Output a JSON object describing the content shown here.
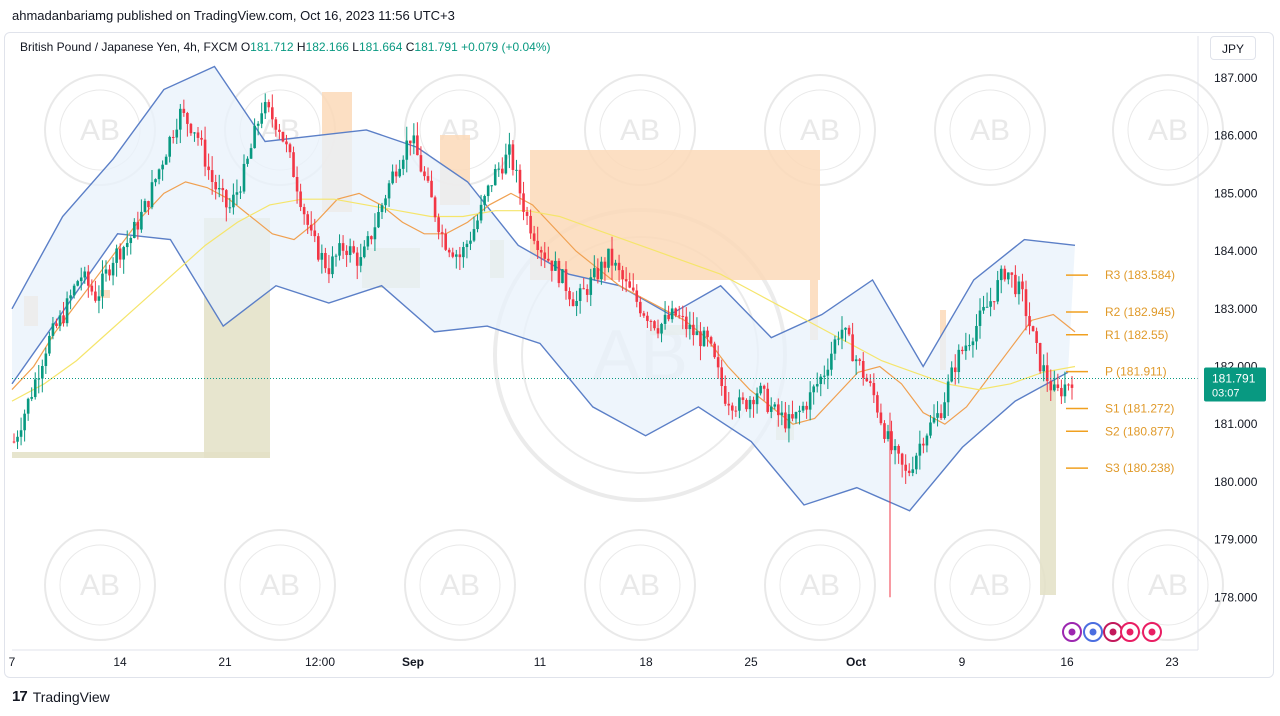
{
  "publisher": "ahmadanbariamg published on TradingView.com, Oct 16, 2023 11:56 UTC+3",
  "legend": {
    "symbol": "British Pound / Japanese Yen, 4h, FXCM",
    "o_label": "O",
    "o": "181.712",
    "h_label": "H",
    "h": "182.166",
    "l_label": "L",
    "l": "181.664",
    "c_label": "C",
    "c": "181.791",
    "change": "+0.079 (+0.04%)"
  },
  "currency": "JPY",
  "footer": {
    "brand": "TradingView",
    "logo_icon": "tradingview-logo-icon"
  },
  "watermark_text": "AB",
  "colors": {
    "up": "#089981",
    "down": "#f23645",
    "band": "#5b7fc7",
    "ma_orange": "#f0a050",
    "ma_yellow": "#f5e56b",
    "pivot": "#f0a020",
    "price_tag": "#089981"
  },
  "chart_data": {
    "type": "candlestick",
    "title": "",
    "ylim": [
      177.4,
      187.4
    ],
    "y_ticks": [
      "187.000",
      "186.000",
      "185.000",
      "184.000",
      "183.000",
      "182.000",
      "181.000",
      "180.000",
      "179.000",
      "178.000"
    ],
    "x_ticks": [
      "7",
      "14",
      "21",
      "12:00",
      "Sep",
      "11",
      "18",
      "25",
      "Oct",
      "9",
      "16",
      "23"
    ],
    "last_price": "181.791",
    "countdown": "03:07",
    "pivots": [
      {
        "label": "R3 (183.584)",
        "value": 183.584
      },
      {
        "label": "R2 (182.945)",
        "value": 182.945
      },
      {
        "label": "R1 (182.55)",
        "value": 182.55
      },
      {
        "label": "P (181.911)",
        "value": 181.911
      },
      {
        "label": "S1 (181.272)",
        "value": 181.272
      },
      {
        "label": "S2 (180.877)",
        "value": 180.877
      },
      {
        "label": "S3 (180.238)",
        "value": 180.238
      }
    ],
    "close_path": [
      180.7,
      181.5,
      182.4,
      182.9,
      183.6,
      183.2,
      183.9,
      184.2,
      184.8,
      185.6,
      186.4,
      186.1,
      185.2,
      184.7,
      185.4,
      186.5,
      186.2,
      185.3,
      184.2,
      183.7,
      184.1,
      183.8,
      184.6,
      185.4,
      186.0,
      185.1,
      184.2,
      183.9,
      184.5,
      185.3,
      185.7,
      184.6,
      184.0,
      183.6,
      183.1,
      183.5,
      183.9,
      183.4,
      183.0,
      182.7,
      182.9,
      182.6,
      182.4,
      181.5,
      181.3,
      181.6,
      181.2,
      181.0,
      181.4,
      181.9,
      182.7,
      182.1,
      181.5,
      180.6,
      180.1,
      180.8,
      181.2,
      182.1,
      182.6,
      183.1,
      183.7,
      183.2,
      182.1,
      181.5,
      181.8
    ],
    "ma_orange": [
      181.6,
      182.0,
      182.6,
      183.1,
      183.6,
      184.1,
      184.6,
      185.0,
      185.2,
      185.1,
      184.9,
      184.6,
      184.3,
      184.2,
      184.5,
      184.9,
      185.0,
      184.8,
      184.5,
      184.3,
      184.3,
      184.5,
      184.8,
      185.0,
      184.8,
      184.4,
      184.0,
      183.7,
      183.4,
      183.2,
      183.0,
      182.8,
      182.5,
      182.0,
      181.6,
      181.3,
      181.0,
      181.1,
      181.5,
      181.9,
      182.0,
      181.7,
      181.2,
      181.0,
      181.3,
      181.8,
      182.3,
      182.8,
      182.9,
      182.6
    ],
    "ma_yellow": [
      181.4,
      181.7,
      182.1,
      182.6,
      183.1,
      183.6,
      184.1,
      184.5,
      184.8,
      184.9,
      184.9,
      184.8,
      184.7,
      184.6,
      184.6,
      184.7,
      184.7,
      184.6,
      184.4,
      184.2,
      184.0,
      183.8,
      183.6,
      183.3,
      183.0,
      182.7,
      182.4,
      182.1,
      181.9,
      181.7,
      181.6,
      181.7,
      181.9,
      182.0
    ],
    "upper_band": [
      183.0,
      184.6,
      185.6,
      186.8,
      187.2,
      185.9,
      186.0,
      186.1,
      185.8,
      185.2,
      184.1,
      183.6,
      183.4,
      182.9,
      183.4,
      182.5,
      182.9,
      183.5,
      182.0,
      183.5,
      184.2,
      184.1
    ],
    "lower_band": [
      181.7,
      183.0,
      184.3,
      184.2,
      182.7,
      183.4,
      183.1,
      183.4,
      182.6,
      182.7,
      182.4,
      181.3,
      180.8,
      181.3,
      180.7,
      179.6,
      179.9,
      179.5,
      180.6,
      181.4,
      181.9
    ]
  }
}
